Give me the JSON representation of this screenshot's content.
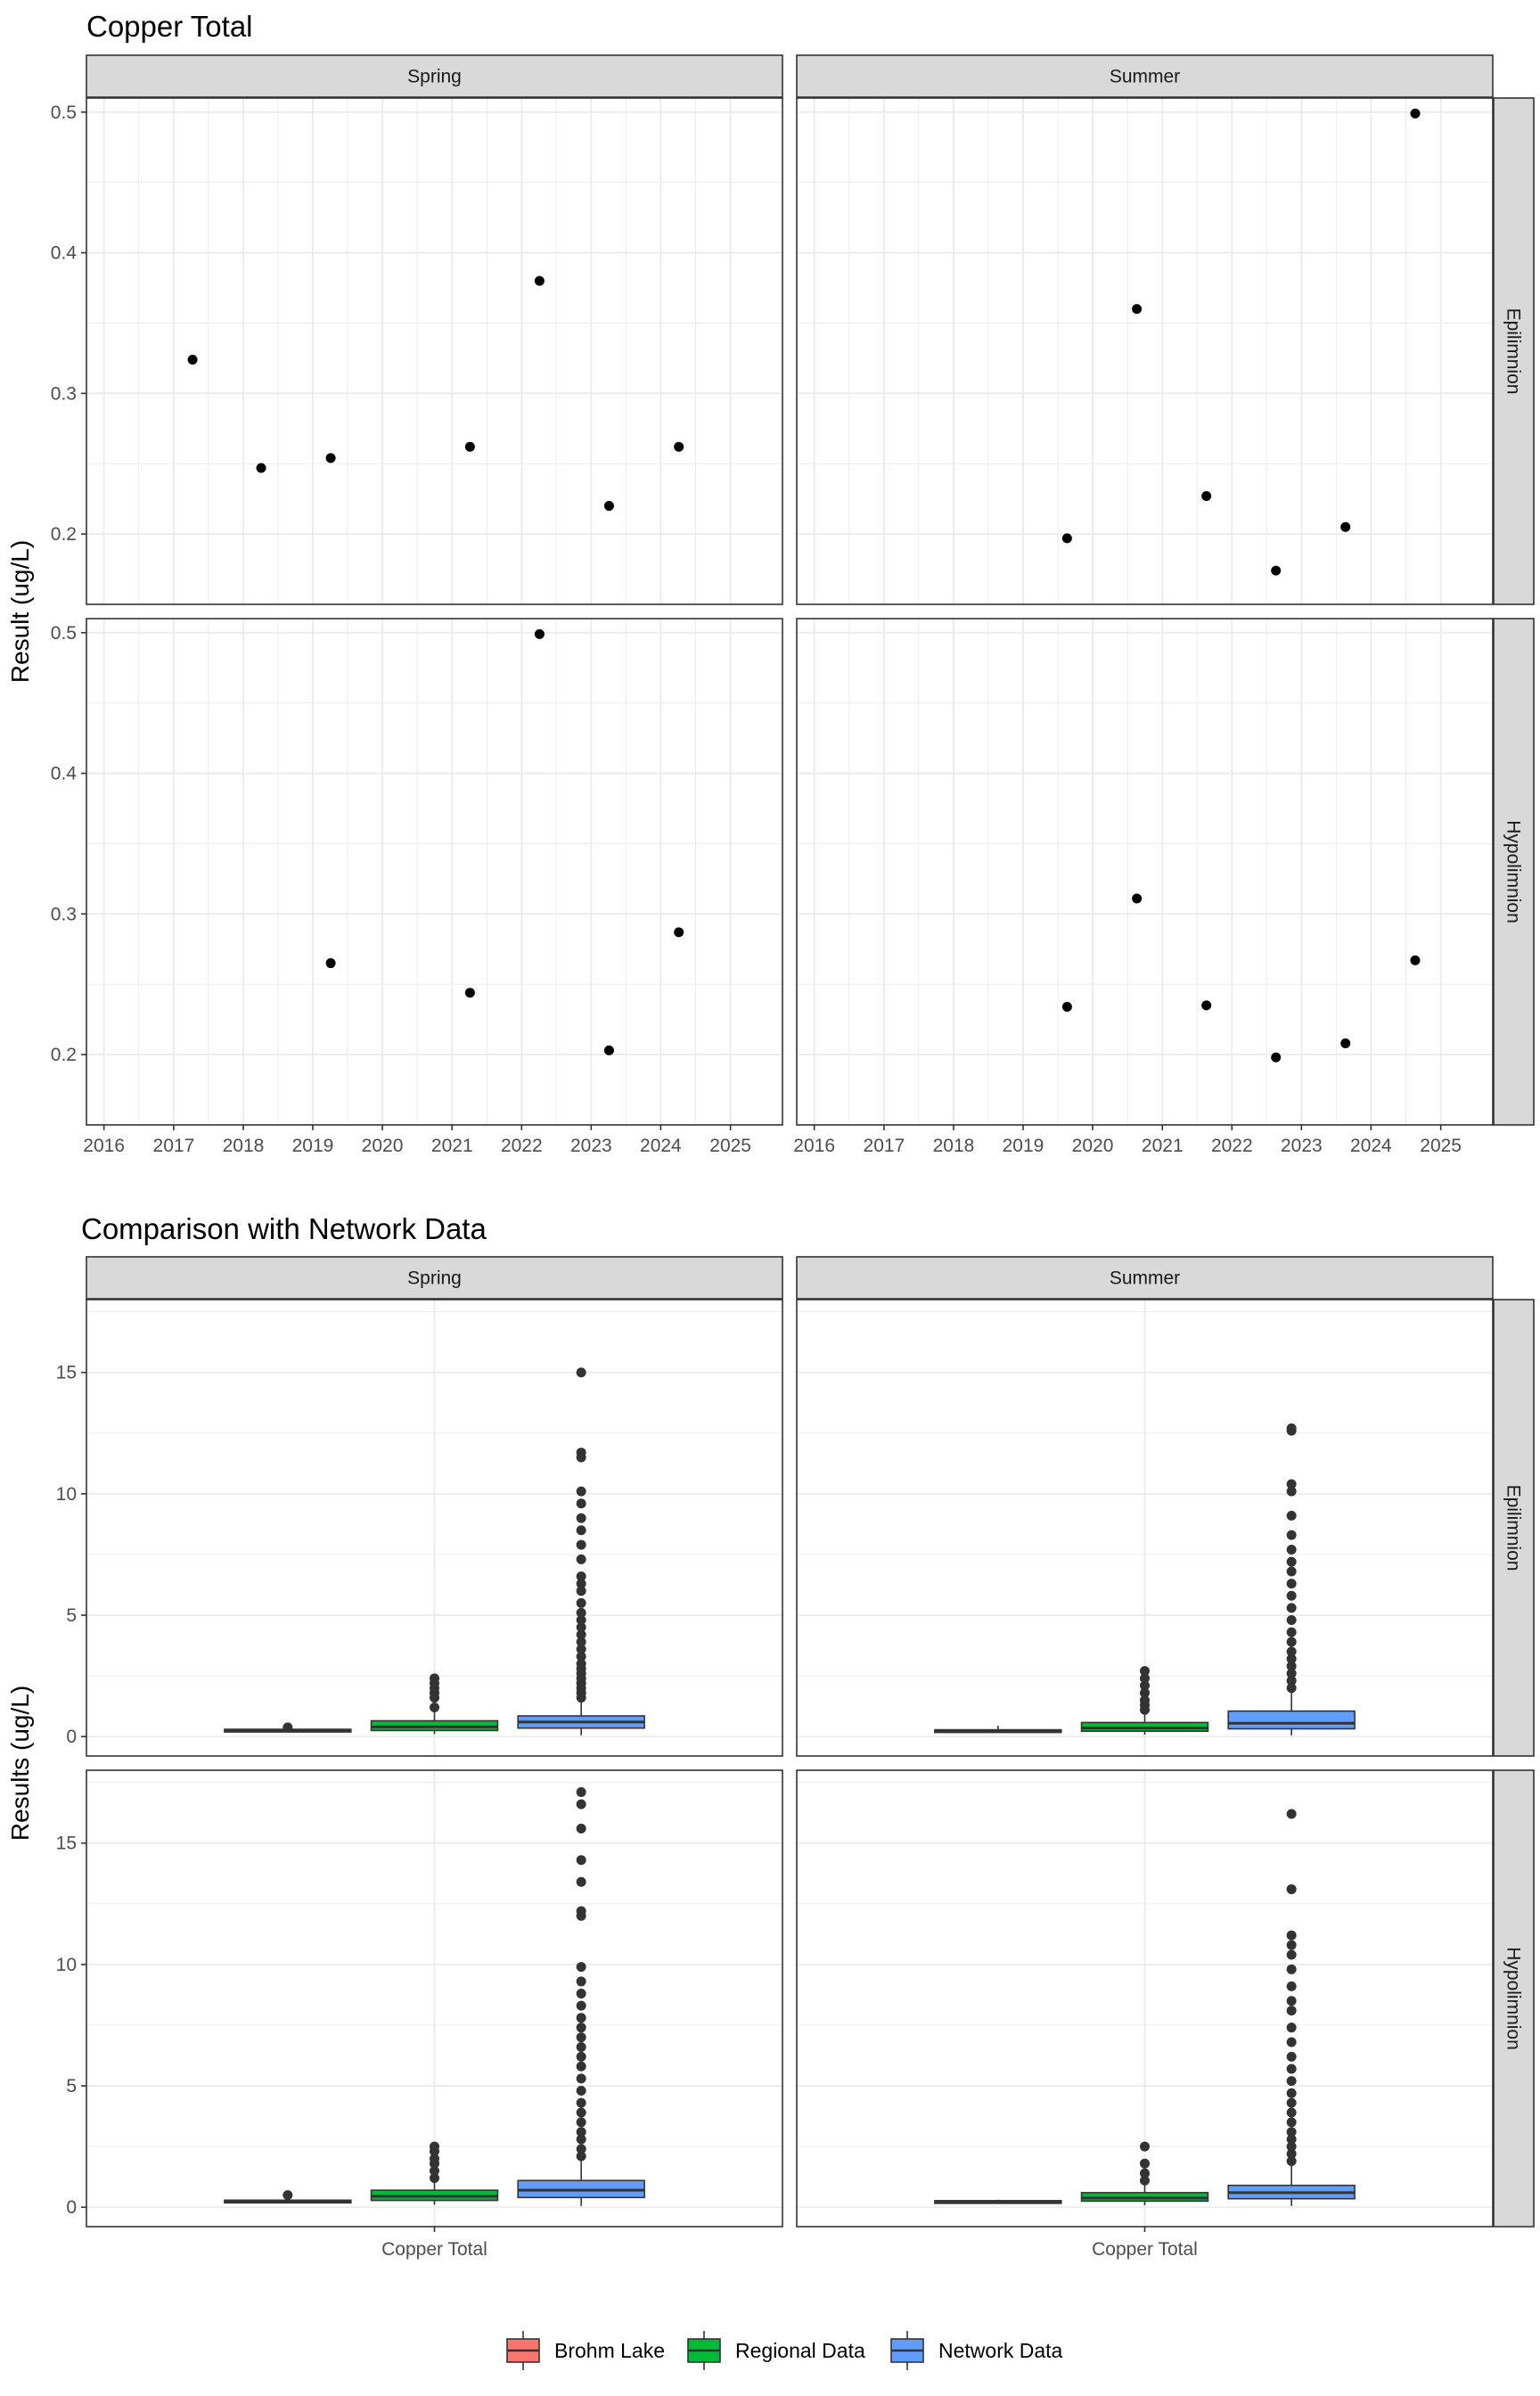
{
  "chart_data": [
    {
      "type": "scatter",
      "title": "Copper Total",
      "ylabel": "Result (ug/L)",
      "xlabel": "",
      "grid": true,
      "x_ticks": [
        "2016",
        "2017",
        "2018",
        "2019",
        "2020",
        "2021",
        "2022",
        "2023",
        "2024",
        "2025"
      ],
      "xlim": [
        "2015-10-01",
        "2025-10-01"
      ],
      "ylim": [
        0.15,
        0.51
      ],
      "y_ticks": [
        0.2,
        0.3,
        0.4,
        0.5
      ],
      "y_tick_labels": [
        "0.2",
        "0.3",
        "0.4",
        "0.5"
      ],
      "columns": [
        "Spring",
        "Summer"
      ],
      "rows": [
        "Epilimnion",
        "Hypolimnion"
      ],
      "panels": [
        {
          "column": "Spring",
          "row": "Epilimnion",
          "points": [
            {
              "x": "2017-04-10",
              "y": 0.324
            },
            {
              "x": "2018-04-05",
              "y": 0.247
            },
            {
              "x": "2019-04-05",
              "y": 0.254
            },
            {
              "x": "2021-04-05",
              "y": 0.262
            },
            {
              "x": "2022-04-05",
              "y": 0.38
            },
            {
              "x": "2023-04-05",
              "y": 0.22
            },
            {
              "x": "2024-04-05",
              "y": 0.262
            }
          ]
        },
        {
          "column": "Summer",
          "row": "Epilimnion",
          "points": [
            {
              "x": "2019-08-20",
              "y": 0.197
            },
            {
              "x": "2020-08-20",
              "y": 0.36
            },
            {
              "x": "2021-08-20",
              "y": 0.227
            },
            {
              "x": "2022-08-20",
              "y": 0.174
            },
            {
              "x": "2023-08-20",
              "y": 0.205
            },
            {
              "x": "2024-08-20",
              "y": 0.499
            }
          ]
        },
        {
          "column": "Spring",
          "row": "Hypolimnion",
          "points": [
            {
              "x": "2019-04-05",
              "y": 0.265
            },
            {
              "x": "2021-04-05",
              "y": 0.244
            },
            {
              "x": "2022-04-05",
              "y": 0.499
            },
            {
              "x": "2023-04-05",
              "y": 0.203
            },
            {
              "x": "2024-04-05",
              "y": 0.287
            }
          ]
        },
        {
          "column": "Summer",
          "row": "Hypolimnion",
          "points": [
            {
              "x": "2019-08-20",
              "y": 0.234
            },
            {
              "x": "2020-08-20",
              "y": 0.311
            },
            {
              "x": "2021-08-20",
              "y": 0.235
            },
            {
              "x": "2022-08-20",
              "y": 0.198
            },
            {
              "x": "2023-08-20",
              "y": 0.208
            },
            {
              "x": "2024-08-20",
              "y": 0.267
            }
          ]
        }
      ]
    },
    {
      "type": "box",
      "title": "Comparison with Network Data",
      "ylabel": "Results (ug/L)",
      "xlabel": "",
      "category": "Copper Total",
      "grid": true,
      "ylim": [
        -0.8,
        18.0
      ],
      "y_ticks": [
        0,
        5,
        10,
        15
      ],
      "y_tick_labels": [
        "0",
        "5",
        "10",
        "15"
      ],
      "columns": [
        "Spring",
        "Summer"
      ],
      "rows": [
        "Epilimnion",
        "Hypolimnion"
      ],
      "series": [
        {
          "name": "Brohm Lake",
          "color": "#F8766D"
        },
        {
          "name": "Regional Data",
          "color": "#00BA38"
        },
        {
          "name": "Network Data",
          "color": "#619CFF"
        }
      ],
      "legend_position": "bottom",
      "panels": [
        {
          "column": "Spring",
          "row": "Epilimnion",
          "boxes": [
            {
              "series": "Brohm Lake",
              "q1": 0.22,
              "median": 0.25,
              "q3": 0.3,
              "lower": 0.2,
              "upper": 0.38,
              "outliers": [
                0.38
              ]
            },
            {
              "series": "Regional Data",
              "q1": 0.25,
              "median": 0.4,
              "q3": 0.65,
              "lower": 0.1,
              "upper": 1.1,
              "outliers": [
                1.2,
                1.6,
                1.8,
                2.0,
                2.2,
                2.4
              ]
            },
            {
              "series": "Network Data",
              "q1": 0.35,
              "median": 0.6,
              "q3": 0.85,
              "lower": 0.05,
              "upper": 1.5,
              "outliers": [
                1.6,
                1.8,
                2.0,
                2.2,
                2.4,
                2.6,
                2.8,
                3.0,
                3.3,
                3.6,
                3.9,
                4.2,
                4.5,
                4.8,
                5.1,
                5.5,
                6.0,
                6.3,
                6.6,
                7.3,
                7.9,
                8.5,
                9.0,
                9.6,
                10.1,
                11.5,
                11.7,
                15.0
              ]
            }
          ]
        },
        {
          "column": "Summer",
          "row": "Epilimnion",
          "boxes": [
            {
              "series": "Brohm Lake",
              "q1": 0.18,
              "median": 0.21,
              "q3": 0.28,
              "lower": 0.17,
              "upper": 0.45,
              "outliers": []
            },
            {
              "series": "Regional Data",
              "q1": 0.22,
              "median": 0.35,
              "q3": 0.58,
              "lower": 0.08,
              "upper": 1.0,
              "outliers": [
                1.1,
                1.3,
                1.5,
                1.8,
                2.1,
                2.4,
                2.7
              ]
            },
            {
              "series": "Network Data",
              "q1": 0.32,
              "median": 0.55,
              "q3": 1.05,
              "lower": 0.05,
              "upper": 1.8,
              "outliers": [
                2.0,
                2.3,
                2.6,
                2.9,
                3.2,
                3.5,
                3.9,
                4.3,
                4.8,
                5.3,
                5.8,
                6.3,
                6.8,
                7.2,
                7.7,
                8.3,
                9.1,
                10.1,
                10.4,
                12.6,
                12.7
              ]
            }
          ]
        },
        {
          "column": "Spring",
          "row": "Hypolimnion",
          "boxes": [
            {
              "series": "Brohm Lake",
              "q1": 0.22,
              "median": 0.26,
              "q3": 0.29,
              "lower": 0.2,
              "upper": 0.5,
              "outliers": [
                0.5
              ]
            },
            {
              "series": "Regional Data",
              "q1": 0.28,
              "median": 0.45,
              "q3": 0.7,
              "lower": 0.1,
              "upper": 1.1,
              "outliers": [
                1.2,
                1.5,
                1.8,
                2.0,
                2.3,
                2.5
              ]
            },
            {
              "series": "Network Data",
              "q1": 0.4,
              "median": 0.7,
              "q3": 1.1,
              "lower": 0.05,
              "upper": 1.9,
              "outliers": [
                2.1,
                2.4,
                2.8,
                3.1,
                3.5,
                3.9,
                4.3,
                4.8,
                5.3,
                5.8,
                6.2,
                6.6,
                7.0,
                7.4,
                7.8,
                8.3,
                8.8,
                9.3,
                9.9,
                12.0,
                12.2,
                13.4,
                14.3,
                15.6,
                16.6,
                17.1
              ]
            }
          ]
        },
        {
          "column": "Summer",
          "row": "Hypolimnion",
          "boxes": [
            {
              "series": "Brohm Lake",
              "q1": 0.19,
              "median": 0.23,
              "q3": 0.27,
              "lower": 0.19,
              "upper": 0.31,
              "outliers": []
            },
            {
              "series": "Regional Data",
              "q1": 0.25,
              "median": 0.38,
              "q3": 0.6,
              "lower": 0.08,
              "upper": 1.0,
              "outliers": [
                1.1,
                1.4,
                1.8,
                2.5
              ]
            },
            {
              "series": "Network Data",
              "q1": 0.35,
              "median": 0.6,
              "q3": 0.9,
              "lower": 0.05,
              "upper": 1.7,
              "outliers": [
                1.9,
                2.2,
                2.5,
                2.8,
                3.1,
                3.5,
                3.9,
                4.3,
                4.7,
                5.2,
                5.7,
                6.2,
                6.8,
                7.4,
                8.1,
                8.5,
                9.1,
                9.8,
                10.4,
                10.8,
                11.2,
                13.1,
                16.2
              ]
            }
          ]
        }
      ]
    }
  ]
}
